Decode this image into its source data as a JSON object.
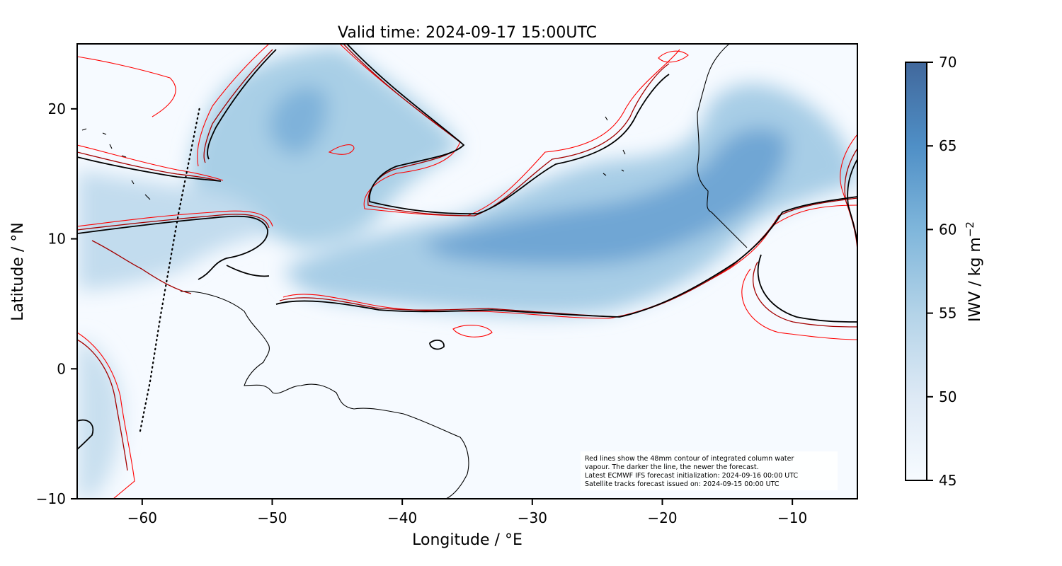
{
  "figure": {
    "title": "Valid time: 2024-09-17 15:00UTC",
    "xlabel": "Longitude / °E",
    "ylabel": "Latitude / °N",
    "colorbar_label": "IWV / kg m",
    "colorbar_label_sup": "−2",
    "note_lines": [
      "Red lines show the 48mm contour of integrated column water",
      "vapour. The darker the line, the newer the forecast.",
      "Latest ECMWF IFS forecast initialization: 2024-09-16 00:00 UTC",
      "Satellite tracks forecast issued on: 2024-09-15 00:00 UTC"
    ]
  },
  "chart_data": {
    "type": "heatmap",
    "xlim": [
      -65,
      -5
    ],
    "ylim": [
      -10,
      25
    ],
    "x_ticks": [
      -60,
      -50,
      -40,
      -30,
      -20,
      -10
    ],
    "x_tick_labels": [
      "−60",
      "−50",
      "−40",
      "−30",
      "−20",
      "−10"
    ],
    "y_ticks": [
      -10,
      0,
      10,
      20
    ],
    "y_tick_labels": [
      "−10",
      "0",
      "10",
      "20"
    ],
    "colorbar": {
      "range": [
        45,
        70
      ],
      "ticks": [
        45,
        50,
        55,
        60,
        65,
        70
      ],
      "tick_labels": [
        "45",
        "50",
        "55",
        "60",
        "65",
        "70"
      ],
      "colors": {
        "low": "#f7fbff",
        "mid": "#9ecae1",
        "high": "#4169a1"
      }
    },
    "contour_colors": [
      "#ff0000",
      "#b00000",
      "#6a0000",
      "#000000"
    ],
    "satellite_track": [
      [
        -55.6,
        20
      ],
      [
        -57.2,
        12
      ],
      [
        -58.6,
        4
      ],
      [
        -59.4,
        -1
      ],
      [
        -60.2,
        -5
      ]
    ],
    "moisture_band_centerline": [
      [
        -47,
        21
      ],
      [
        -45.5,
        16
      ],
      [
        -44,
        12
      ],
      [
        -41,
        9
      ],
      [
        -35,
        8
      ],
      [
        -28,
        9
      ],
      [
        -22,
        11
      ],
      [
        -17,
        14
      ],
      [
        -15,
        19
      ],
      [
        -13,
        21.5
      ]
    ]
  }
}
